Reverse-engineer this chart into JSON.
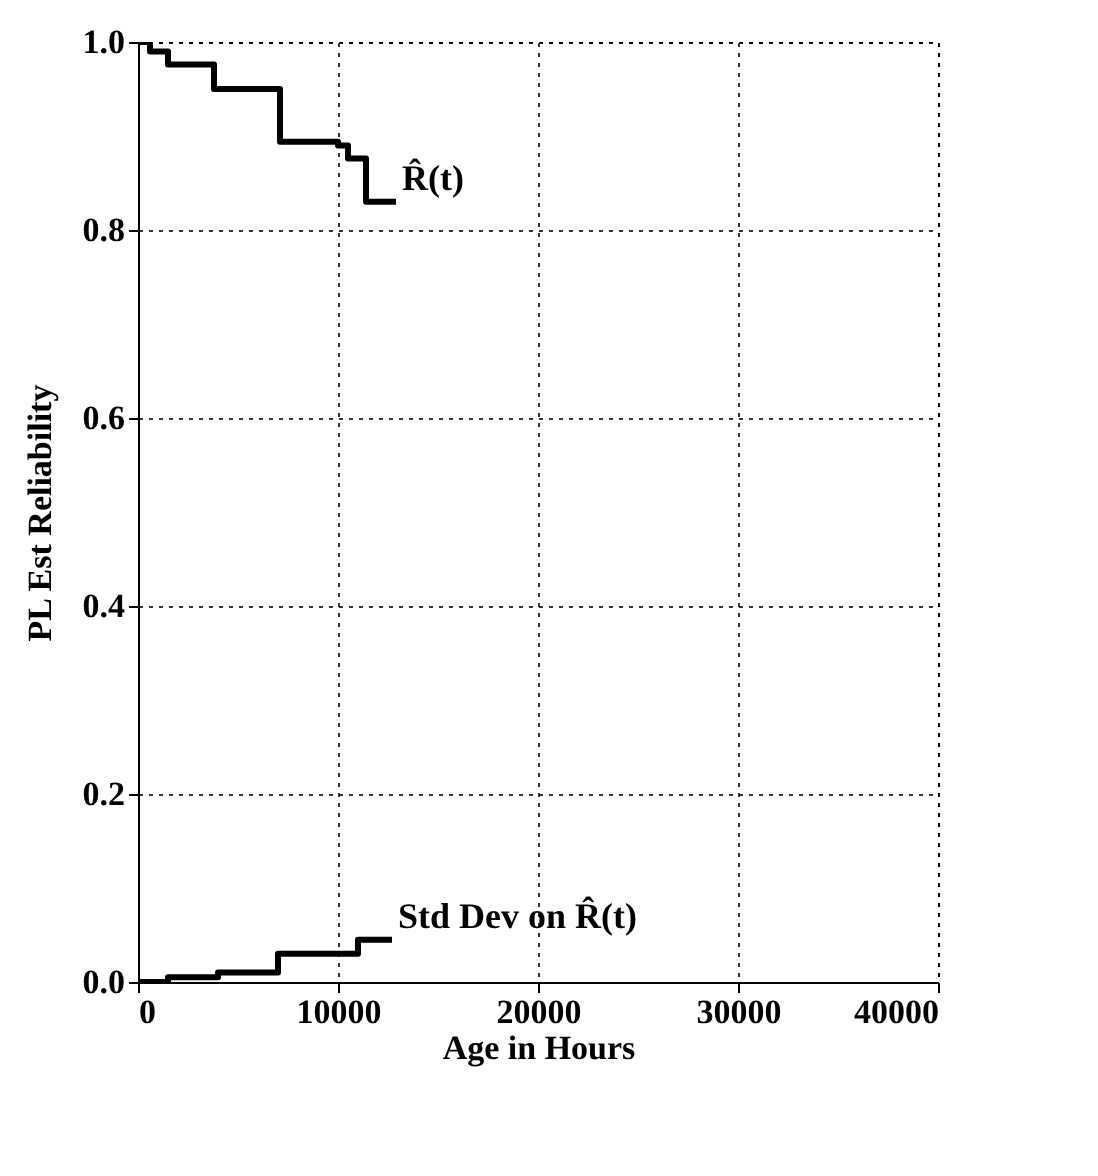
{
  "chart_data": {
    "type": "step",
    "xlabel": "Age in Hours",
    "ylabel": "PL Est Reliability",
    "xlim": [
      0,
      40000
    ],
    "xticks": [
      0,
      10000,
      20000,
      30000,
      40000
    ],
    "ylim": [
      0,
      1
    ],
    "yticks": [
      {
        "value": 0,
        "label": "0.0"
      },
      0.2,
      0.4,
      0.6,
      0.8,
      {
        "value": 1,
        "label": "1.0"
      }
    ],
    "grid": true,
    "line_style": "solid",
    "marker": "none",
    "series": [
      {
        "color": "#000000",
        "x": [
          0,
          600,
          1500,
          3800,
          7100,
          10000,
          10500,
          11400,
          12900
        ],
        "values": [
          1,
          0.99,
          0.976,
          0.95,
          0.894,
          0.89,
          0.876,
          0.83,
          0.83
        ]
      },
      {
        "color": "#000000",
        "x": [
          0,
          1500,
          4000,
          7000,
          11000,
          12700
        ],
        "values": [
          0,
          0.005,
          0.01,
          0.03,
          0.045,
          0.045
        ]
      }
    ],
    "annotations": [
      {
        "text": "R̂(t)",
        "x": 12900,
        "y": 0.83
      },
      {
        "text": "Std Dev on R̂(t)",
        "x": 12700,
        "y": 0.045
      }
    ]
  }
}
